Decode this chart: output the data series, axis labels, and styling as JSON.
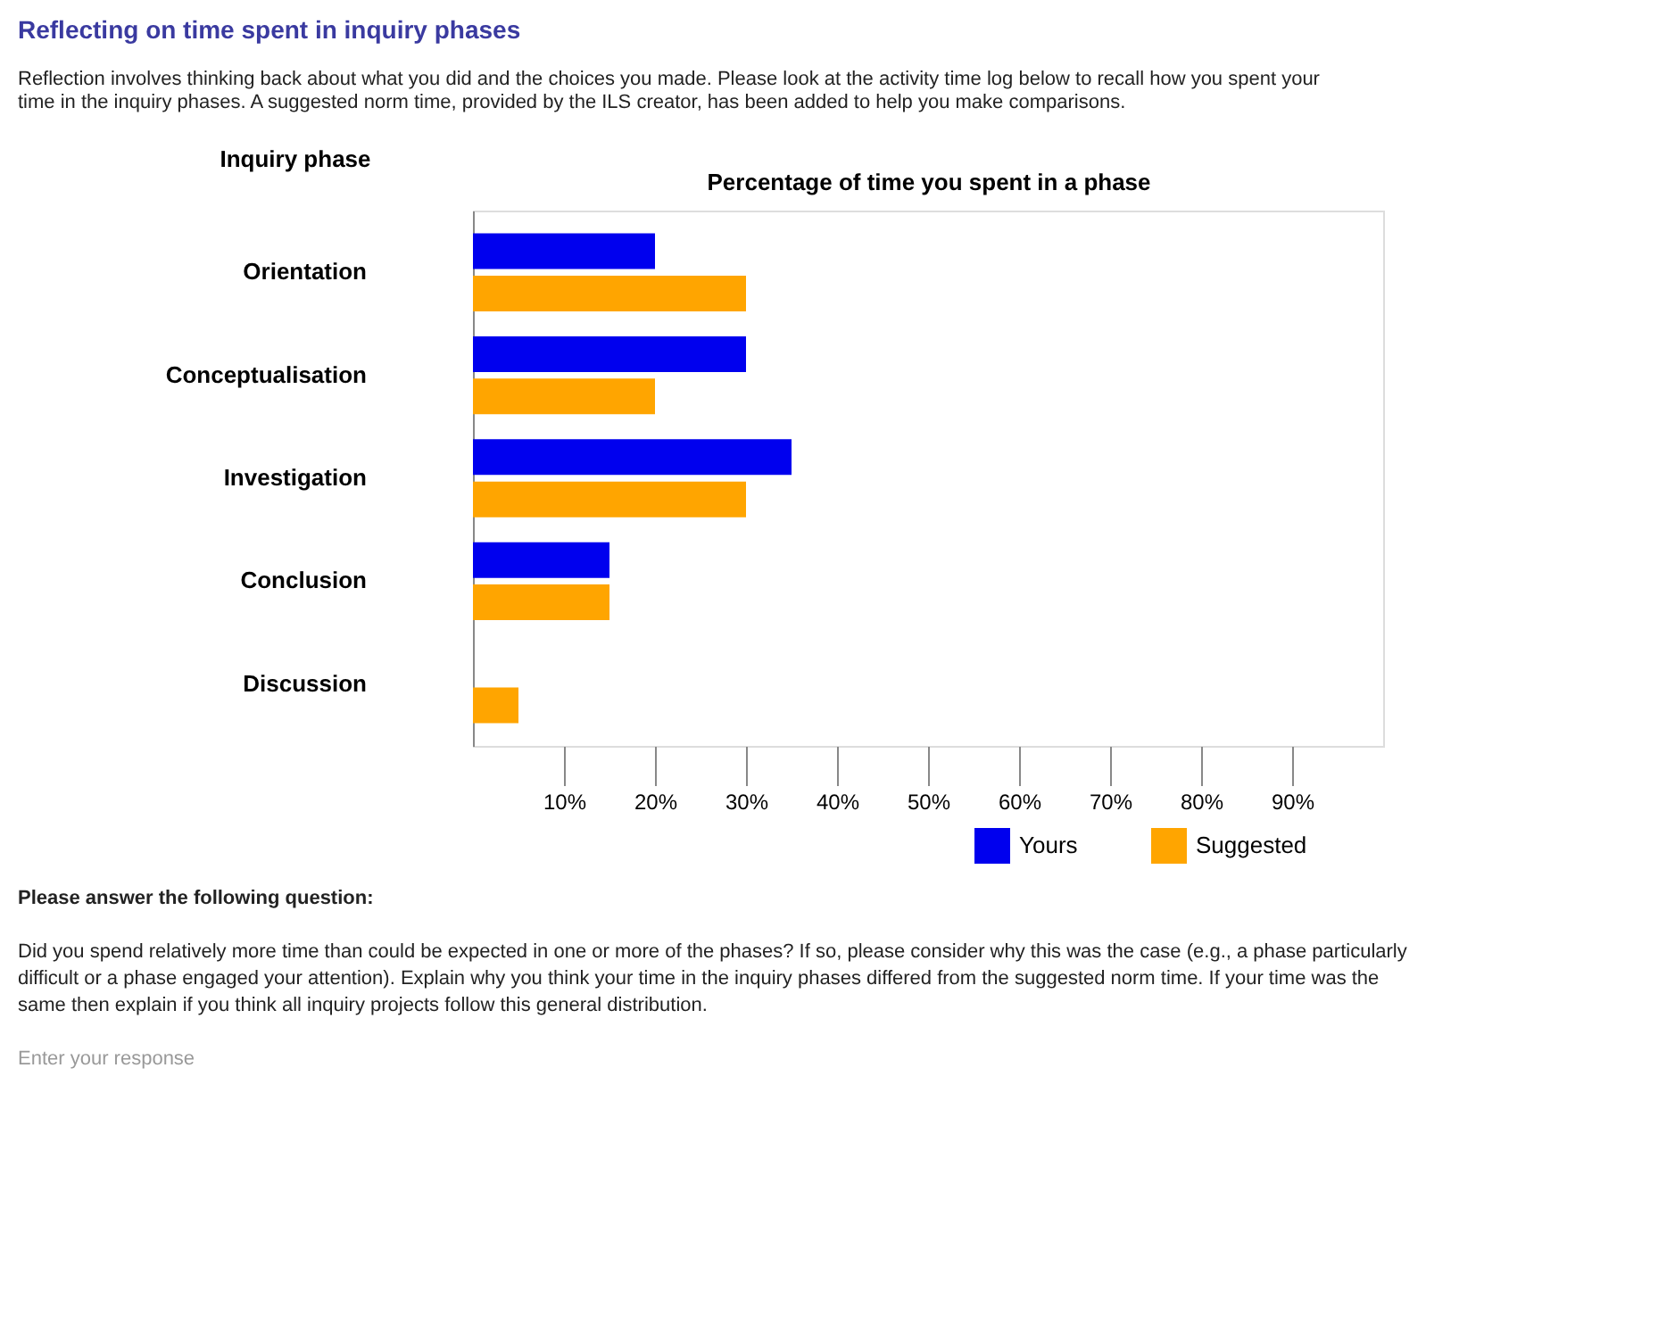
{
  "chart_data": {
    "type": "bar",
    "orientation": "horizontal",
    "title": "Reflecting on time spent in inquiry phases",
    "subtitle": "Reflection involves thinking back about what you did and the choices you made. Please look at the activity time log below to recall how you spent your time in the inquiry phases. A suggested norm time, provided by the ILS creator, has been added to help you make comparisons.",
    "ylabel": "Inquiry phase",
    "xlabel": "Percentage of time you spent in a phase",
    "categories": [
      "Orientation",
      "Conceptualisation",
      "Investigation",
      "Conclusion",
      "Discussion"
    ],
    "series": [
      {
        "name": "Yours",
        "color": "#0000ee",
        "values": [
          20,
          30,
          35,
          15,
          0
        ]
      },
      {
        "name": "Suggested",
        "color": "#ffa500",
        "values": [
          30,
          20,
          30,
          15,
          5
        ]
      }
    ],
    "xlim": [
      0,
      100
    ],
    "xticks": [
      {
        "value": 10,
        "label": "10%"
      },
      {
        "value": 20,
        "label": "20%"
      },
      {
        "value": 30,
        "label": "30%"
      },
      {
        "value": 40,
        "label": "40%"
      },
      {
        "value": 50,
        "label": "50%"
      },
      {
        "value": 60,
        "label": "60%"
      },
      {
        "value": 70,
        "label": "70%"
      },
      {
        "value": 80,
        "label": "80%"
      },
      {
        "value": 90,
        "label": "90%"
      }
    ],
    "grid": false,
    "legend": "bottom right",
    "annotations": [
      "Please answer the following question:",
      "Did you spend relatively more time than could be expected in one or more of the phases? If so, please consider why this was the case (e.g., a phase particularly difficult or a phase engaged your attention). Explain why you think your time in the inquiry phases differed from the suggested norm time. If your time was the same then explain if you think all inquiry projects follow this general distribution.",
      "Enter your response"
    ]
  }
}
